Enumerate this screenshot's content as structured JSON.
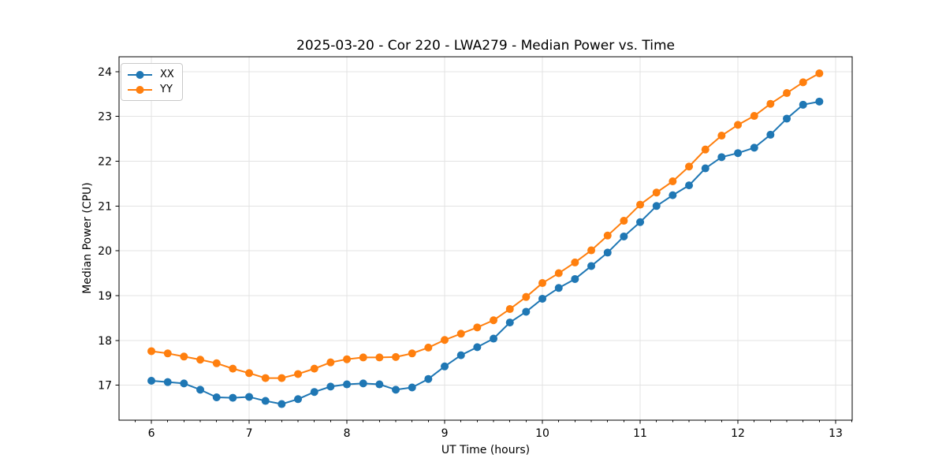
{
  "chart_data": {
    "type": "line",
    "title": "2025-03-20 - Cor 220 - LWA279 - Median Power vs. Time",
    "xlabel": "UT Time (hours)",
    "ylabel": "Median Power (CPU)",
    "xlim": [
      5.669,
      13.169
    ],
    "ylim": [
      16.22,
      24.33
    ],
    "x_major_ticks": [
      6,
      7,
      8,
      9,
      10,
      11,
      12,
      13
    ],
    "y_major_ticks": [
      17,
      18,
      19,
      20,
      21,
      22,
      23,
      24
    ],
    "x_minor_tick_step_hours": 0.166667,
    "grid": true,
    "legend_position": "upper-left",
    "axis_color": "#000000",
    "grid_color": "#e3e3e3",
    "x": [
      6.0,
      6.167,
      6.333,
      6.5,
      6.667,
      6.833,
      7.0,
      7.167,
      7.333,
      7.5,
      7.667,
      7.833,
      8.0,
      8.167,
      8.333,
      8.5,
      8.667,
      8.833,
      9.0,
      9.167,
      9.333,
      9.5,
      9.667,
      9.833,
      10.0,
      10.167,
      10.333,
      10.5,
      10.667,
      10.833,
      11.0,
      11.167,
      11.333,
      11.5,
      11.667,
      11.833,
      12.0,
      12.167,
      12.333,
      12.5,
      12.667,
      12.833
    ],
    "series": [
      {
        "name": "XX",
        "color": "#1f77b4",
        "marker": "circle",
        "values": [
          17.1,
          17.07,
          17.04,
          16.9,
          16.73,
          16.72,
          16.74,
          16.65,
          16.58,
          16.69,
          16.85,
          16.97,
          17.02,
          17.04,
          17.02,
          16.9,
          16.95,
          17.14,
          17.42,
          17.67,
          17.85,
          18.04,
          18.4,
          18.64,
          18.93,
          19.17,
          19.37,
          19.66,
          19.96,
          20.32,
          20.64,
          21.0,
          21.24,
          21.46,
          21.84,
          22.09,
          22.18,
          22.3,
          22.59,
          22.95,
          23.26,
          23.33
        ]
      },
      {
        "name": "YY",
        "color": "#ff7f0e",
        "marker": "circle",
        "values": [
          17.76,
          17.71,
          17.64,
          17.57,
          17.49,
          17.37,
          17.27,
          17.16,
          17.16,
          17.25,
          17.37,
          17.51,
          17.58,
          17.62,
          17.62,
          17.63,
          17.71,
          17.84,
          18.01,
          18.15,
          18.29,
          18.45,
          18.7,
          18.97,
          19.28,
          19.5,
          19.74,
          20.01,
          20.34,
          20.67,
          21.03,
          21.3,
          21.55,
          21.88,
          22.26,
          22.57,
          22.81,
          23.01,
          23.28,
          23.52,
          23.76,
          23.96
        ]
      }
    ]
  }
}
